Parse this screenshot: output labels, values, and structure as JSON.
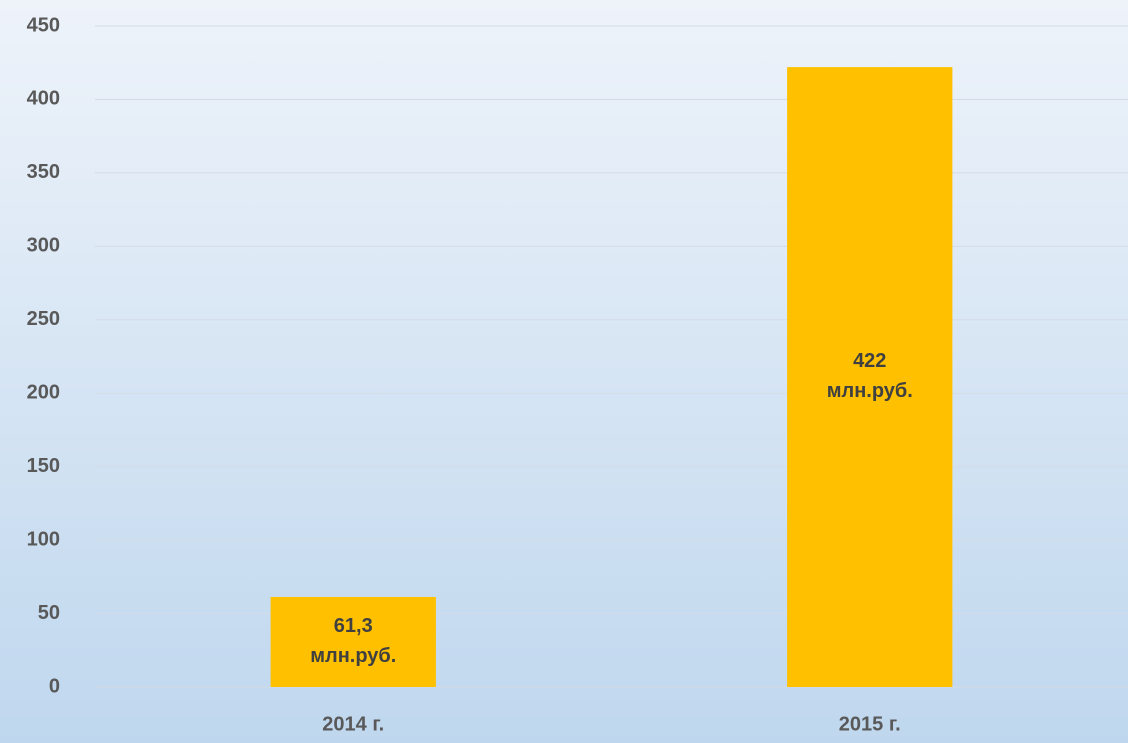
{
  "chart_data": {
    "type": "bar",
    "categories": [
      "2014 г.",
      "2015 г."
    ],
    "values": [
      61.3,
      422
    ],
    "value_labels": [
      "61,3 млн.руб.",
      "422 млн.руб."
    ],
    "color": "#ffc000",
    "ylim": [
      0,
      450
    ],
    "yticks": [
      0,
      50,
      100,
      150,
      200,
      250,
      300,
      350,
      400,
      450
    ],
    "grid": true
  }
}
